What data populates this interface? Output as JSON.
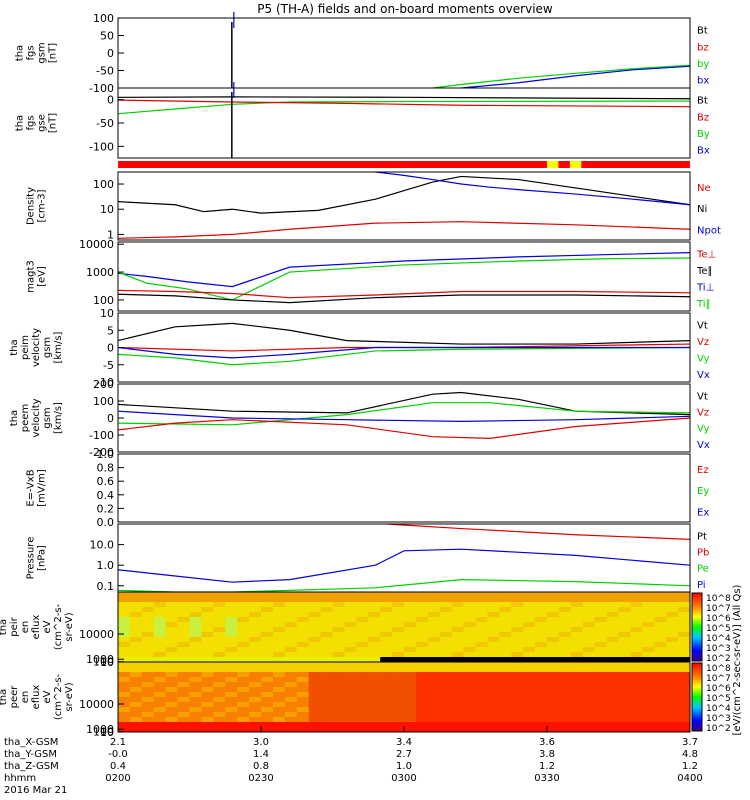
{
  "title": "P5 (TH-A) fields and on-board moments overview",
  "colors": {
    "black": "#000000",
    "red": "#e00000",
    "green": "#00d000",
    "blue": "#0000e0",
    "yellow": "#ffff00"
  },
  "chart_data": [
    {
      "type": "line",
      "panel": "fgs_gsm",
      "ylabel": "tha\nfgs\ngsm\n[nT]",
      "ylim": [
        -100,
        100
      ],
      "yticks": [
        "100",
        "50",
        "0",
        "-50",
        "-100"
      ],
      "legend": [
        {
          "name": "Bt",
          "color": "black"
        },
        {
          "name": "bz",
          "color": "red"
        },
        {
          "name": "by",
          "color": "green"
        },
        {
          "name": "bx",
          "color": "blue"
        }
      ],
      "series": [
        {
          "name": "by",
          "color": "green",
          "x": [
            0.55,
            0.6,
            0.7,
            0.8,
            0.9,
            1.0
          ],
          "y": [
            -100,
            -90,
            -72,
            -58,
            -45,
            -35
          ]
        },
        {
          "name": "bx",
          "color": "blue",
          "x": [
            0.6,
            0.7,
            0.8,
            0.9,
            1.0
          ],
          "y": [
            -100,
            -85,
            -65,
            -48,
            -38
          ]
        }
      ],
      "spike_x": 0.199
    },
    {
      "type": "line",
      "panel": "fgs_gse",
      "ylabel": "tha\nfgs\ngse\n[nT]",
      "ylim": [
        -125,
        25
      ],
      "yticks": [
        "0",
        "-50",
        "-100"
      ],
      "legend": [
        {
          "name": "Bt",
          "color": "black"
        },
        {
          "name": "Bz",
          "color": "red"
        },
        {
          "name": "By",
          "color": "green"
        },
        {
          "name": "Bx",
          "color": "blue"
        }
      ],
      "series": [
        {
          "name": "Bt",
          "color": "black",
          "x": [
            0,
            0.2,
            0.5,
            1.0
          ],
          "y": [
            5,
            6,
            5,
            2
          ]
        },
        {
          "name": "By",
          "color": "green",
          "x": [
            0,
            0.1,
            0.2,
            0.3,
            0.5,
            1.0
          ],
          "y": [
            -30,
            -20,
            -10,
            -5,
            -4,
            -3
          ]
        },
        {
          "name": "Bz",
          "color": "red",
          "x": [
            0,
            0.2,
            0.4,
            0.6,
            1.0
          ],
          "y": [
            -1,
            -5,
            -8,
            -12,
            -15
          ]
        }
      ],
      "spike_x": 0.199
    },
    {
      "type": "bar",
      "panel": "mode_bar",
      "segments": [
        {
          "from": 0.75,
          "to": 0.77,
          "color": "yellow"
        },
        {
          "from": 0.79,
          "to": 0.81,
          "color": "yellow"
        }
      ]
    },
    {
      "type": "line",
      "panel": "density",
      "ylabel": "Density\n[cm-3]",
      "log": true,
      "ylim": [
        0.6,
        300
      ],
      "yticks": [
        "100",
        "10",
        "1"
      ],
      "legend": [
        {
          "name": "Ne",
          "color": "red"
        },
        {
          "name": "Ni",
          "color": "black"
        },
        {
          "name": "Npot",
          "color": "blue"
        }
      ],
      "series": [
        {
          "name": "Ni",
          "color": "black",
          "x": [
            0,
            0.1,
            0.15,
            0.2,
            0.25,
            0.35,
            0.45,
            0.55,
            0.6,
            0.7,
            0.8,
            1.0
          ],
          "y": [
            20,
            15,
            8,
            10,
            7,
            9,
            25,
            120,
            200,
            150,
            70,
            15
          ]
        },
        {
          "name": "Ne",
          "color": "red",
          "x": [
            0,
            0.1,
            0.2,
            0.3,
            0.45,
            0.6,
            0.8,
            1.0
          ],
          "y": [
            0.7,
            0.8,
            1.0,
            1.6,
            2.8,
            3.2,
            2.4,
            1.6
          ]
        },
        {
          "name": "Npot",
          "color": "blue",
          "x": [
            0.45,
            0.5,
            0.55,
            0.6,
            0.65,
            0.7,
            0.8,
            0.9,
            1.0
          ],
          "y": [
            300,
            220,
            150,
            100,
            75,
            60,
            40,
            25,
            15
          ]
        }
      ]
    },
    {
      "type": "line",
      "panel": "temperature",
      "ylabel": "magt3\n[eV]",
      "log": true,
      "ylim": [
        40,
        12000
      ],
      "yticks": [
        "10000",
        "1000",
        "100"
      ],
      "legend": [
        {
          "name": "Te⊥",
          "color": "red"
        },
        {
          "name": "Te∥",
          "color": "black"
        },
        {
          "name": "Ti⊥",
          "color": "blue"
        },
        {
          "name": "Ti∥",
          "color": "green"
        }
      ],
      "series": [
        {
          "name": "Ti⊥",
          "color": "blue",
          "x": [
            0,
            0.05,
            0.12,
            0.2,
            0.3,
            0.5,
            0.7,
            0.85,
            1.0
          ],
          "y": [
            900,
            700,
            450,
            300,
            1500,
            2500,
            3500,
            4200,
            5000
          ]
        },
        {
          "name": "Ti∥",
          "color": "green",
          "x": [
            0,
            0.05,
            0.12,
            0.2,
            0.3,
            0.5,
            0.7,
            0.85,
            1.0
          ],
          "y": [
            1000,
            400,
            250,
            100,
            1000,
            1800,
            2500,
            3000,
            3200
          ]
        },
        {
          "name": "Te⊥",
          "color": "red",
          "x": [
            0,
            0.1,
            0.2,
            0.3,
            0.45,
            0.6,
            0.8,
            1.0
          ],
          "y": [
            220,
            200,
            170,
            120,
            150,
            200,
            200,
            180
          ]
        },
        {
          "name": "Te∥",
          "color": "black",
          "x": [
            0,
            0.1,
            0.2,
            0.3,
            0.45,
            0.6,
            0.8,
            1.0
          ],
          "y": [
            160,
            140,
            100,
            80,
            120,
            150,
            150,
            130
          ]
        }
      ]
    },
    {
      "type": "line",
      "panel": "peim_velocity",
      "ylabel": "tha\npeim\nvelocity\ngsm\n[km/s]",
      "ylim": [
        -10,
        10
      ],
      "yticks": [
        "10",
        "5",
        "0",
        "-5",
        "-10"
      ],
      "legend": [
        {
          "name": "Vt",
          "color": "black"
        },
        {
          "name": "Vz",
          "color": "red"
        },
        {
          "name": "Vy",
          "color": "green"
        },
        {
          "name": "Vx",
          "color": "blue"
        }
      ],
      "series": [
        {
          "name": "Vt",
          "color": "black",
          "x": [
            0,
            0.1,
            0.2,
            0.3,
            0.4,
            0.6,
            0.8,
            1.0
          ],
          "y": [
            2,
            6,
            7,
            5,
            2,
            1,
            1,
            2
          ]
        },
        {
          "name": "Vz",
          "color": "red",
          "x": [
            0,
            0.2,
            0.4,
            0.6,
            1.0
          ],
          "y": [
            0,
            -1,
            0,
            0,
            1
          ]
        },
        {
          "name": "Vy",
          "color": "green",
          "x": [
            0,
            0.1,
            0.2,
            0.3,
            0.45,
            0.6,
            1.0
          ],
          "y": [
            -2,
            -3,
            -5,
            -4,
            -1,
            -0.5,
            0
          ]
        },
        {
          "name": "Vx",
          "color": "blue",
          "x": [
            0,
            0.1,
            0.2,
            0.3,
            0.45,
            1.0
          ],
          "y": [
            0,
            -2,
            -3,
            -2,
            0,
            0
          ]
        }
      ]
    },
    {
      "type": "line",
      "panel": "peem_velocity",
      "ylabel": "tha\npeem\nvelocity\ngsm\n[km/s]",
      "ylim": [
        -200,
        200
      ],
      "yticks": [
        "200",
        "100",
        "0",
        "-100",
        "-200"
      ],
      "legend": [
        {
          "name": "Vt",
          "color": "black"
        },
        {
          "name": "Vz",
          "color": "red"
        },
        {
          "name": "Vy",
          "color": "green"
        },
        {
          "name": "Vx",
          "color": "blue"
        }
      ],
      "series": [
        {
          "name": "Vt",
          "color": "black",
          "x": [
            0,
            0.2,
            0.4,
            0.55,
            0.6,
            0.7,
            0.8,
            1.0
          ],
          "y": [
            80,
            40,
            30,
            140,
            150,
            110,
            40,
            20
          ]
        },
        {
          "name": "Vy",
          "color": "green",
          "x": [
            0,
            0.2,
            0.4,
            0.55,
            0.65,
            0.8,
            1.0
          ],
          "y": [
            -30,
            -40,
            20,
            90,
            90,
            40,
            30
          ]
        },
        {
          "name": "Vx",
          "color": "blue",
          "x": [
            0,
            0.2,
            0.4,
            0.6,
            0.8,
            1.0
          ],
          "y": [
            40,
            0,
            -10,
            -20,
            -10,
            10
          ]
        },
        {
          "name": "Vz",
          "color": "red",
          "x": [
            0,
            0.1,
            0.2,
            0.4,
            0.55,
            0.65,
            0.8,
            1.0
          ],
          "y": [
            -70,
            -30,
            -10,
            -40,
            -110,
            -120,
            -50,
            0
          ]
        }
      ]
    },
    {
      "type": "line",
      "panel": "efield",
      "ylabel": "E=-VxB\n[mV/m]",
      "ylim": [
        0,
        1
      ],
      "yticks": [
        "1.0",
        "0.8",
        "0.6",
        "0.4",
        "0.2",
        "0.0"
      ],
      "legend": [
        {
          "name": "Ez",
          "color": "red"
        },
        {
          "name": "Ey",
          "color": "green"
        },
        {
          "name": "Ex",
          "color": "blue"
        }
      ],
      "series": []
    },
    {
      "type": "line",
      "panel": "pressure",
      "ylabel": "Pressure\n[nPa]",
      "log": true,
      "ylim": [
        0.05,
        100
      ],
      "yticks": [
        "10.0",
        "1.0",
        "0.1"
      ],
      "legend": [
        {
          "name": "Pt",
          "color": "black"
        },
        {
          "name": "Pb",
          "color": "red"
        },
        {
          "name": "Pe",
          "color": "green"
        },
        {
          "name": "Pi",
          "color": "blue"
        }
      ],
      "series": [
        {
          "name": "Pb",
          "color": "red",
          "x": [
            0.47,
            0.6,
            0.8,
            1.0
          ],
          "y": [
            100,
            60,
            30,
            18
          ]
        },
        {
          "name": "Pi",
          "color": "blue",
          "x": [
            0,
            0.1,
            0.2,
            0.3,
            0.45,
            0.5,
            0.6,
            0.8,
            1.0
          ],
          "y": [
            0.6,
            0.3,
            0.15,
            0.2,
            1.0,
            5.0,
            6.0,
            3.0,
            1.0
          ]
        },
        {
          "name": "Pe",
          "color": "green",
          "x": [
            0,
            0.1,
            0.2,
            0.3,
            0.45,
            0.6,
            0.8,
            1.0
          ],
          "y": [
            0.06,
            0.05,
            0.05,
            0.06,
            0.08,
            0.2,
            0.16,
            0.1
          ]
        }
      ]
    },
    {
      "type": "heatmap",
      "panel": "peir_eflux",
      "ylabel": "tha\npeir\nen\neflux\neV\n(cm^2-s-\nsr-eV)",
      "ylim": [
        7,
        25000
      ],
      "yticks": [
        "10000",
        "1000",
        "100",
        "10"
      ]
    },
    {
      "type": "heatmap",
      "panel": "peer_eflux",
      "ylabel": "tha\npeer\nen\neflux\neV\n(cm^2-s-\nsr-eV)",
      "ylim": [
        7,
        25000
      ],
      "yticks": [
        "10000",
        "1000",
        "100",
        "10"
      ]
    }
  ],
  "colorbar": {
    "label": "[eV/(cm^2-sec-sr-eV)] (All Qs)",
    "ticks": [
      "10^8",
      "10^7",
      "10^6",
      "10^5",
      "10^4",
      "10^3",
      "10^2"
    ]
  },
  "xaxis": {
    "row_labels": [
      "tha_X-GSM",
      "tha_Y-GSM",
      "tha_Z-GSM",
      "hhmm",
      "2016 Mar 21"
    ],
    "columns": [
      [
        "2.1",
        "-0.0",
        "0.4",
        "0200"
      ],
      [
        "3.0",
        "1.4",
        "0.8",
        "0230"
      ],
      [
        "3.4",
        "2.7",
        "1.0",
        "0300"
      ],
      [
        "3.6",
        "3.8",
        "1.2",
        "0330"
      ],
      [
        "3.7",
        "4.8",
        "1.2",
        "0400"
      ]
    ]
  }
}
